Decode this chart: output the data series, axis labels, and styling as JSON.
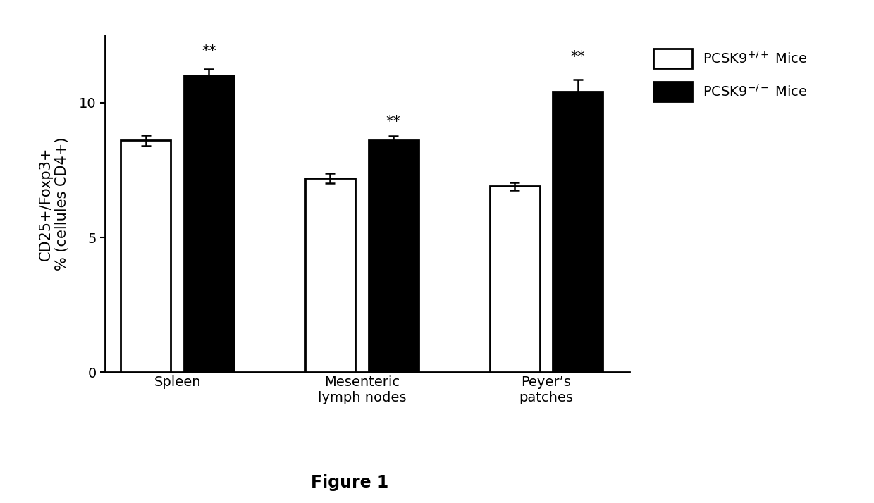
{
  "groups": [
    "Spleen",
    "Mesenteric\nlymph nodes",
    "Peyer’s\npatches"
  ],
  "wt_values": [
    8.6,
    7.2,
    6.9
  ],
  "ko_values": [
    11.0,
    8.6,
    10.4
  ],
  "wt_errors": [
    0.2,
    0.18,
    0.15
  ],
  "ko_errors": [
    0.25,
    0.15,
    0.45
  ],
  "wt_color": "#ffffff",
  "ko_color": "#000000",
  "bar_edge_color": "#000000",
  "bar_width": 0.38,
  "ylim": [
    0,
    12.5
  ],
  "yticks": [
    0,
    5,
    10
  ],
  "ylabel": "CD25+/Foxp3+\n% (cellules CD4+)",
  "legend_wt": "PCSK9$^{+/+}$ Mice",
  "legend_ko": "PCSK9$^{-/-}$ Mice",
  "significance": "**",
  "figure_label": "Figure 1",
  "background_color": "#ffffff",
  "axis_fontsize": 15,
  "tick_fontsize": 14,
  "legend_fontsize": 14,
  "sig_fontsize": 15,
  "figure_label_fontsize": 17
}
